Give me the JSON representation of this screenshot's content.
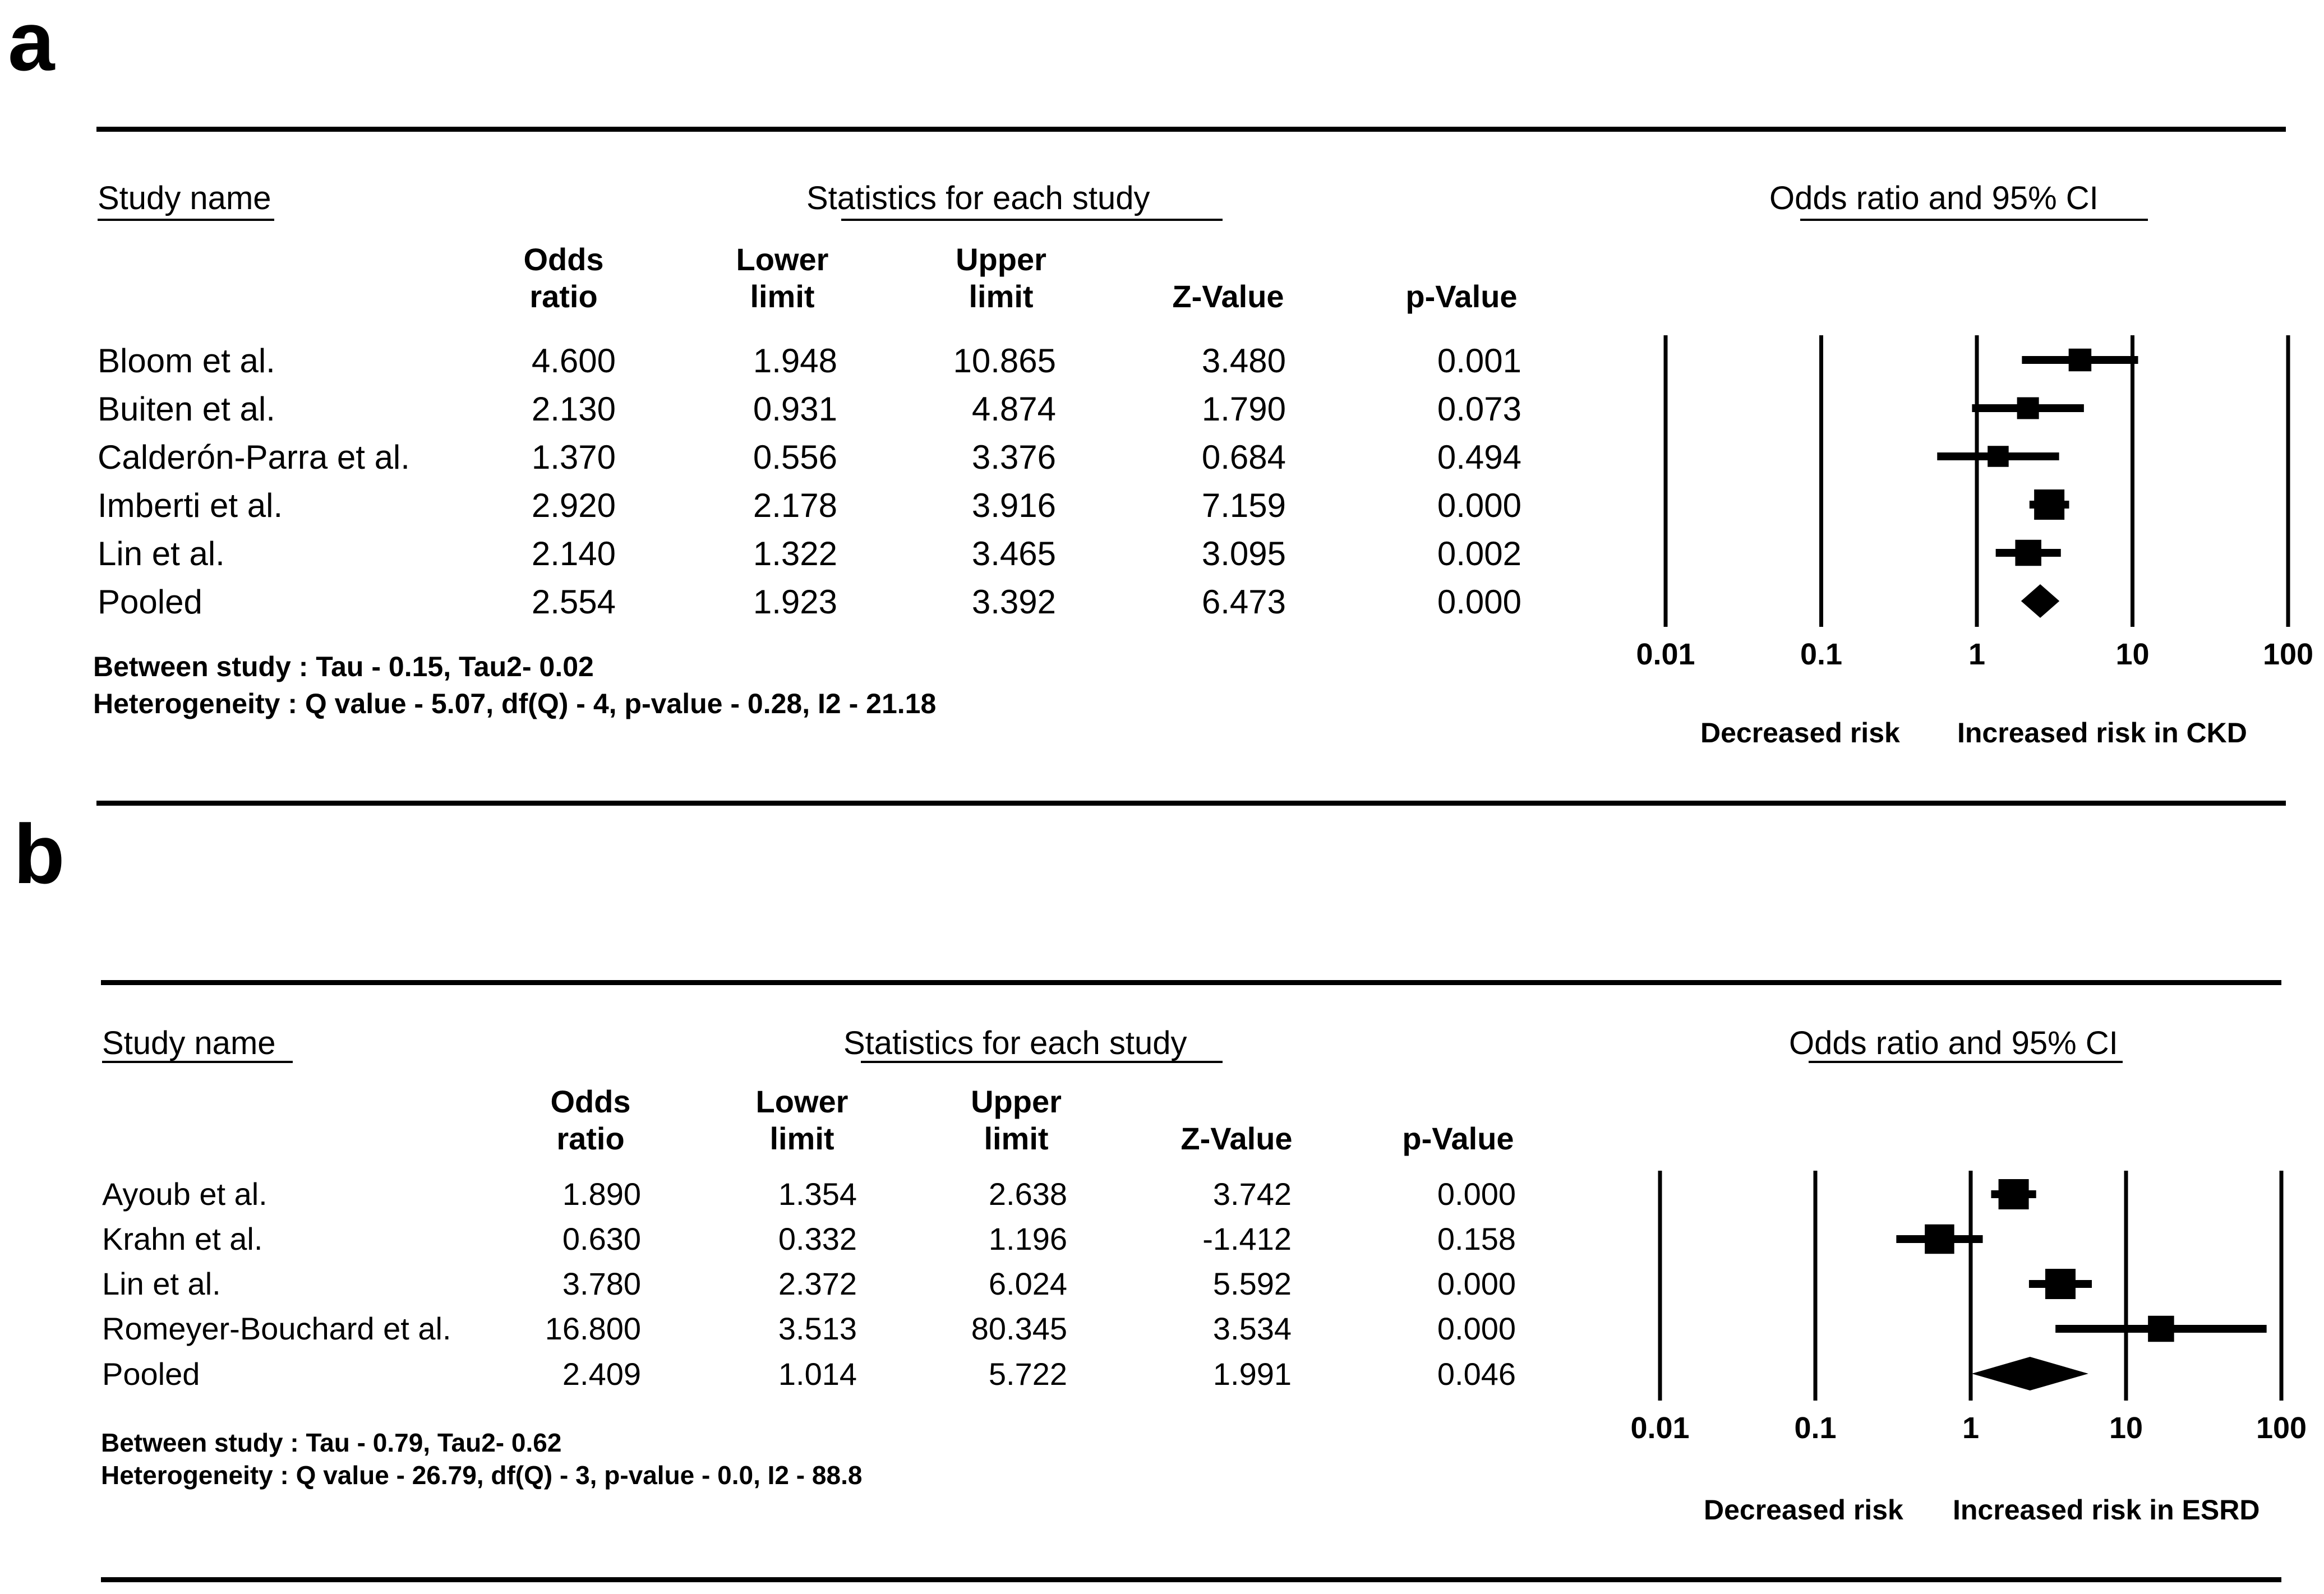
{
  "chart_data": [
    {
      "type": "forest",
      "panel_label": "a",
      "header_study": "Study name",
      "header_stats": "Statistics for each study",
      "header_plot": "Odds ratio and 95% CI",
      "columns": [
        {
          "line1": "Odds",
          "line2": "ratio"
        },
        {
          "line1": "Lower",
          "line2": "limit"
        },
        {
          "line1": "Upper",
          "line2": "limit"
        },
        {
          "line1": "",
          "line2": "Z-Value"
        },
        {
          "line1": "",
          "line2": "p-Value"
        }
      ],
      "rows": [
        {
          "study": "Bloom et al.",
          "odds_ratio": "4.600",
          "lower": "1.948",
          "upper": "10.865",
          "z": "3.480",
          "p": "0.001",
          "or": 4.6,
          "lo": 1.948,
          "hi": 10.865,
          "weight": 0.55,
          "pooled": false
        },
        {
          "study": "Buiten et al.",
          "odds_ratio": "2.130",
          "lower": "0.931",
          "upper": "4.874",
          "z": "1.790",
          "p": "0.073",
          "or": 2.13,
          "lo": 0.931,
          "hi": 4.874,
          "weight": 0.5,
          "pooled": false
        },
        {
          "study": "Calderón-Parra et al.",
          "odds_ratio": "1.370",
          "lower": "0.556",
          "upper": "3.376",
          "z": "0.684",
          "p": "0.494",
          "or": 1.37,
          "lo": 0.556,
          "hi": 3.376,
          "weight": 0.45,
          "pooled": false
        },
        {
          "study": "Imberti et al.",
          "odds_ratio": "2.920",
          "lower": "2.178",
          "upper": "3.916",
          "z": "7.159",
          "p": "0.000",
          "or": 2.92,
          "lo": 2.178,
          "hi": 3.916,
          "weight": 1.0,
          "pooled": false
        },
        {
          "study": "Lin et al.",
          "odds_ratio": "2.140",
          "lower": "1.322",
          "upper": "3.465",
          "z": "3.095",
          "p": "0.002",
          "or": 2.14,
          "lo": 1.322,
          "hi": 3.465,
          "weight": 0.75,
          "pooled": false
        },
        {
          "study": "Pooled",
          "odds_ratio": "2.554",
          "lower": "1.923",
          "upper": "3.392",
          "z": "6.473",
          "p": "0.000",
          "or": 2.554,
          "lo": 1.923,
          "hi": 3.392,
          "weight": 1.0,
          "pooled": true
        }
      ],
      "stats_line1": "Between study : Tau - 0.15, Tau2- 0.02",
      "stats_line2": "Heterogeneity : Q value - 5.07, df(Q) - 4, p-value - 0.28, I2 - 21.18",
      "x_axis": {
        "scale": "log",
        "xlim": [
          0.01,
          100
        ],
        "ticks": [
          0.01,
          0.1,
          1,
          10,
          100
        ],
        "tick_labels": [
          "0.01",
          "0.1",
          "1",
          "10",
          "100"
        ]
      },
      "label_left": "Decreased risk",
      "label_right": "Increased risk in CKD"
    },
    {
      "type": "forest",
      "panel_label": "b",
      "header_study": "Study name",
      "header_stats": "Statistics for each study",
      "header_plot": "Odds ratio and 95% CI",
      "columns": [
        {
          "line1": "Odds",
          "line2": "ratio"
        },
        {
          "line1": "Lower",
          "line2": "limit"
        },
        {
          "line1": "Upper",
          "line2": "limit"
        },
        {
          "line1": "",
          "line2": "Z-Value"
        },
        {
          "line1": "",
          "line2": "p-Value"
        }
      ],
      "rows": [
        {
          "study": "Ayoub et al.",
          "odds_ratio": "1.890",
          "lower": "1.354",
          "upper": "2.638",
          "z": "3.742",
          "p": "0.000",
          "or": 1.89,
          "lo": 1.354,
          "hi": 2.638,
          "weight": 1.0,
          "pooled": false
        },
        {
          "study": "Krahn et al.",
          "odds_ratio": "0.630",
          "lower": "0.332",
          "upper": "1.196",
          "z": "-1.412",
          "p": "0.158",
          "or": 0.63,
          "lo": 0.332,
          "hi": 1.196,
          "weight": 0.95,
          "pooled": false
        },
        {
          "study": "Lin et al.",
          "odds_ratio": "3.780",
          "lower": "2.372",
          "upper": "6.024",
          "z": "5.592",
          "p": "0.000",
          "or": 3.78,
          "lo": 2.372,
          "hi": 6.024,
          "weight": 1.0,
          "pooled": false
        },
        {
          "study": "Romeyer-Bouchard et al.",
          "odds_ratio": "16.800",
          "lower": "3.513",
          "upper": "80.345",
          "z": "3.534",
          "p": "0.000",
          "or": 16.8,
          "lo": 3.513,
          "hi": 80.345,
          "weight": 0.75,
          "pooled": false
        },
        {
          "study": "Pooled",
          "odds_ratio": "2.409",
          "lower": "1.014",
          "upper": "5.722",
          "z": "1.991",
          "p": "0.046",
          "or": 2.409,
          "lo": 1.014,
          "hi": 5.722,
          "weight": 1.0,
          "pooled": true
        }
      ],
      "stats_line1": "Between study : Tau - 0.79, Tau2- 0.62",
      "stats_line2": "Heterogeneity : Q value - 26.79, df(Q) - 3, p-value - 0.0, I2 - 88.8",
      "x_axis": {
        "scale": "log",
        "xlim": [
          0.01,
          100
        ],
        "ticks": [
          0.01,
          0.1,
          1,
          10,
          100
        ],
        "tick_labels": [
          "0.01",
          "0.1",
          "1",
          "10",
          "100"
        ]
      },
      "label_left": "Decreased risk",
      "label_right": "Increased risk in ESRD"
    }
  ]
}
